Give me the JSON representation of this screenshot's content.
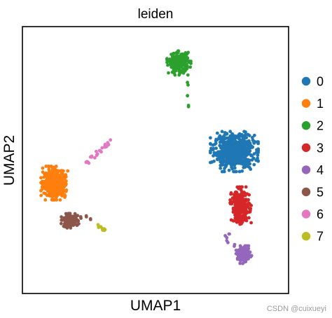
{
  "chart_data": {
    "type": "scatter",
    "title": "leiden",
    "xlabel": "UMAP1",
    "ylabel": "UMAP2",
    "xlim": [
      -10,
      15
    ],
    "ylim": [
      -8,
      14
    ],
    "xticks": [],
    "yticks": [],
    "grid": false,
    "legend_position": "right",
    "series": [
      {
        "name": "0",
        "color": "#1f77b4",
        "count": 620,
        "clusters": [
          {
            "center": [
              9.9,
              3.7
            ],
            "spread": [
              1.7,
              1.25
            ]
          }
        ]
      },
      {
        "name": "1",
        "color": "#ff7f0e",
        "count": 420,
        "clusters": [
          {
            "center": [
              -7.0,
              1.1
            ],
            "spread": [
              0.95,
              1.05
            ]
          }
        ]
      },
      {
        "name": "2",
        "color": "#2ca02c",
        "count": 210,
        "clusters": [
          {
            "center": [
              4.7,
              11.0
            ],
            "spread": [
              0.85,
              0.75
            ]
          }
        ],
        "trail": [
          [
            5.5,
            9.4
          ],
          [
            5.5,
            8.3
          ],
          [
            5.6,
            7.4
          ]
        ]
      },
      {
        "name": "3",
        "color": "#d62728",
        "count": 300,
        "clusters": [
          {
            "center": [
              10.5,
              -0.8
            ],
            "spread": [
              0.75,
              1.2
            ]
          }
        ]
      },
      {
        "name": "4",
        "color": "#9467bd",
        "count": 170,
        "clusters": [
          {
            "center": [
              10.8,
              -4.8
            ],
            "spread": [
              0.55,
              0.55
            ]
          }
        ],
        "trail": [
          [
            9.4,
            -3.1
          ],
          [
            9.2,
            -3.4
          ],
          [
            9.3,
            -3.8
          ],
          [
            9.9,
            -4.1
          ]
        ]
      },
      {
        "name": "5",
        "color": "#8c564b",
        "count": 170,
        "clusters": [
          {
            "center": [
              -5.5,
              -2.0
            ],
            "spread": [
              0.65,
              0.45
            ]
          }
        ],
        "trail": [
          [
            -4.5,
            -1.8
          ],
          [
            -4.0,
            -1.6
          ],
          [
            -3.6,
            -1.9
          ]
        ]
      },
      {
        "name": "6",
        "color": "#e377c2",
        "count": 26,
        "line": [
          [
            -4.0,
            2.7
          ],
          [
            -1.5,
            4.6
          ]
        ],
        "jitter": [
          0.1,
          0.1
        ]
      },
      {
        "name": "7",
        "color": "#bcbd22",
        "count": 12,
        "line": [
          [
            -3.0,
            -2.4
          ],
          [
            -2.2,
            -2.8
          ]
        ],
        "jitter": [
          0.06,
          0.05
        ]
      }
    ]
  },
  "watermark": "CSDN @cuixueyi"
}
